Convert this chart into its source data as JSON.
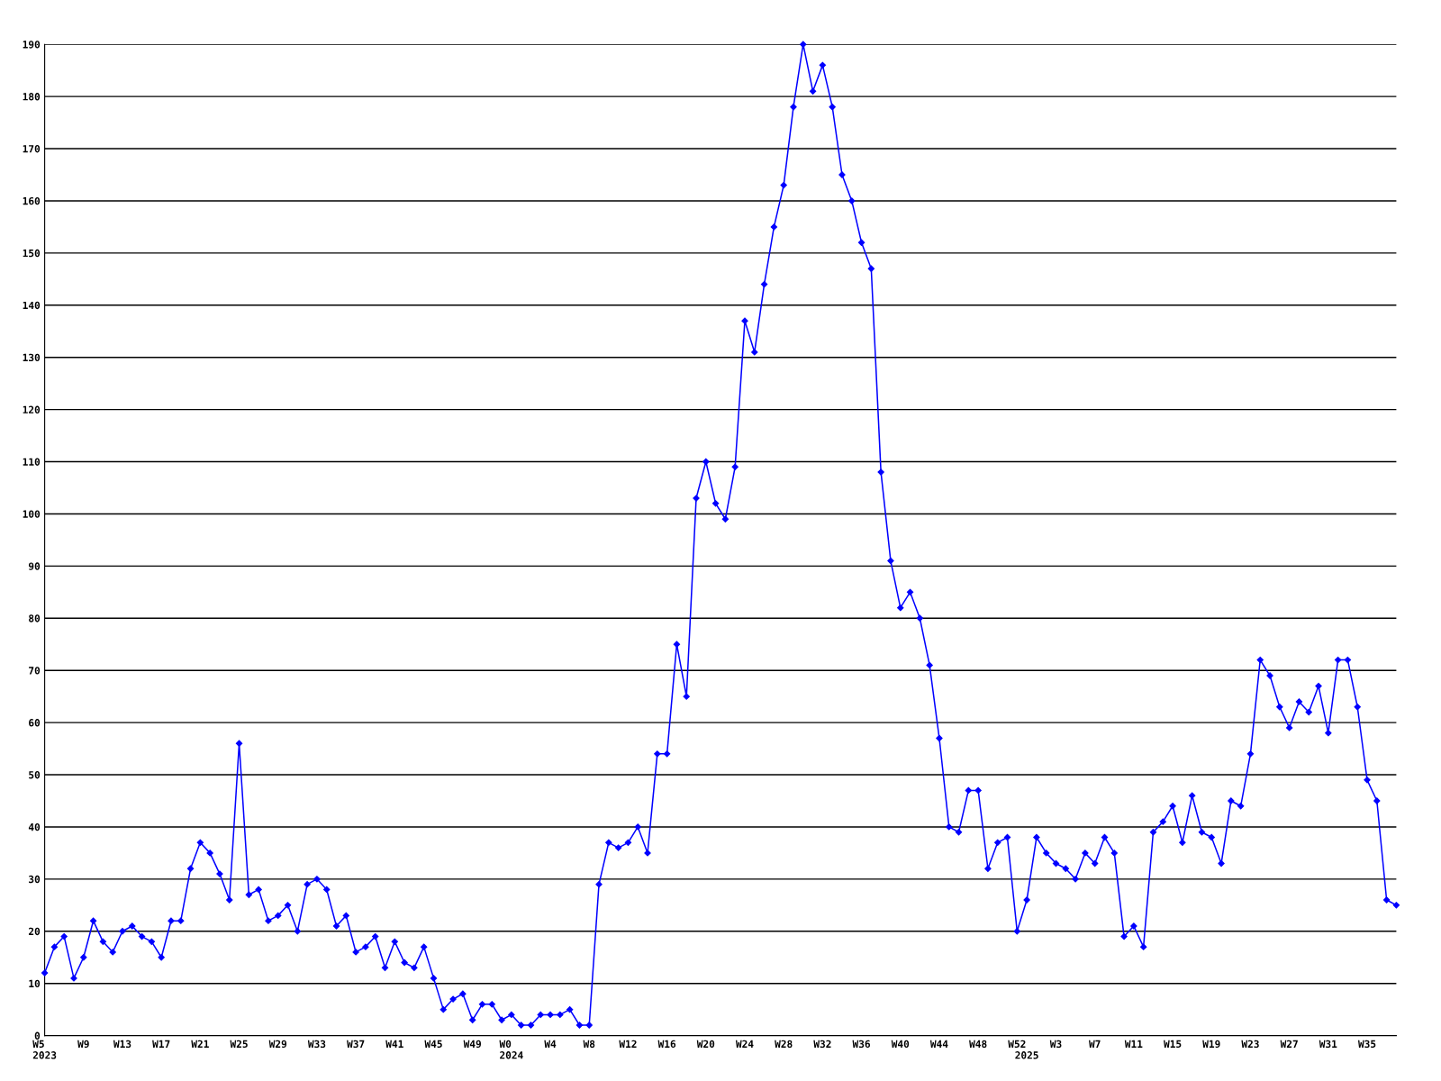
{
  "chart_data": {
    "type": "line",
    "categories": [
      "W5\n2023",
      null,
      null,
      null,
      "W9",
      null,
      null,
      null,
      "W13",
      null,
      null,
      null,
      "W17",
      null,
      null,
      null,
      "W21",
      null,
      null,
      null,
      "W25",
      null,
      null,
      null,
      "W29",
      null,
      null,
      null,
      "W33",
      null,
      null,
      null,
      "W37",
      null,
      null,
      null,
      "W41",
      null,
      null,
      null,
      "W45",
      null,
      null,
      null,
      "W49",
      null,
      null,
      null,
      "W0\n2024",
      null,
      null,
      null,
      "W4",
      null,
      null,
      null,
      "W8",
      null,
      null,
      null,
      "W12",
      null,
      null,
      null,
      "W16",
      null,
      null,
      null,
      "W20",
      null,
      null,
      null,
      "W24",
      null,
      null,
      null,
      "W28",
      null,
      null,
      null,
      "W32",
      null,
      null,
      null,
      "W36",
      null,
      null,
      null,
      "W40",
      null,
      null,
      null,
      "W44",
      null,
      null,
      null,
      "W48",
      null,
      null,
      null,
      "W52",
      "\n2025",
      null,
      null,
      "W3",
      null,
      null,
      null,
      "W7",
      null,
      null,
      null,
      "W11",
      null,
      null,
      null,
      "W15",
      null,
      null,
      null,
      "W19",
      null,
      null,
      null,
      "W23",
      null,
      null,
      null,
      "W27",
      null,
      null,
      null,
      "W31",
      null,
      null,
      null,
      "W35",
      null,
      null,
      null
    ],
    "series": [
      {
        "color": "#0000ff",
        "values": [
          12,
          17,
          19,
          11,
          15,
          22,
          18,
          16,
          20,
          21,
          19,
          18,
          15,
          22,
          22,
          32,
          37,
          35,
          31,
          26,
          56,
          27,
          28,
          22,
          23,
          25,
          20,
          29,
          30,
          28,
          21,
          23,
          16,
          17,
          19,
          13,
          18,
          14,
          13,
          17,
          11,
          5,
          7,
          8,
          3,
          6,
          6,
          3,
          4,
          2,
          2,
          4,
          4,
          4,
          5,
          2,
          2,
          29,
          37,
          36,
          37,
          40,
          35,
          54,
          54,
          75,
          65,
          103,
          110,
          102,
          99,
          109,
          137,
          131,
          144,
          155,
          163,
          178,
          190,
          181,
          186,
          178,
          165,
          160,
          152,
          147,
          108,
          91,
          82,
          85,
          80,
          71,
          57,
          40,
          39,
          47,
          47,
          32,
          37,
          38,
          20,
          26,
          38,
          35,
          33,
          32,
          30,
          35,
          33,
          38,
          35,
          19,
          21,
          17,
          39,
          41,
          44,
          37,
          46,
          39,
          38,
          33,
          45,
          44,
          54,
          72,
          69,
          63,
          59,
          64,
          62,
          67,
          58,
          72,
          72,
          63,
          49,
          45,
          26,
          25
        ]
      }
    ],
    "ylim": [
      0,
      190
    ],
    "yticks": [
      0,
      10,
      20,
      30,
      40,
      50,
      60,
      70,
      80,
      90,
      100,
      110,
      120,
      130,
      140,
      150,
      160,
      170,
      180,
      190
    ],
    "grid": "y",
    "marker": "diamond",
    "line_style": "solid"
  }
}
